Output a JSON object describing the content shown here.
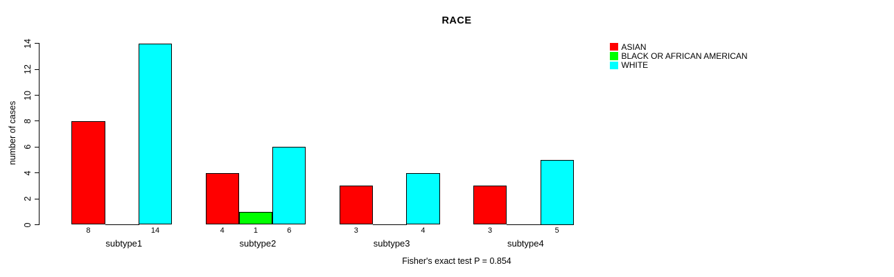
{
  "title": "RACE",
  "y_axis": {
    "label": "number of cases",
    "ticks": [
      0,
      2,
      4,
      6,
      8,
      10,
      12,
      14
    ]
  },
  "footer": "Fisher's exact test P = 0.854",
  "legend": {
    "items": [
      {
        "label": "ASIAN",
        "color": "#FF0000"
      },
      {
        "label": "BLACK OR AFRICAN AMERICAN",
        "color": "#00FF00"
      },
      {
        "label": "WHITE",
        "color": "#00FFFF"
      }
    ]
  },
  "chart_data": {
    "type": "bar",
    "title": "RACE",
    "categories": [
      "subtype1",
      "subtype2",
      "subtype3",
      "subtype4"
    ],
    "series": [
      {
        "name": "ASIAN",
        "color": "#FF0000",
        "values": [
          8,
          4,
          3,
          3
        ]
      },
      {
        "name": "BLACK OR AFRICAN AMERICAN",
        "color": "#00FF00",
        "values": [
          0,
          1,
          0,
          0
        ]
      },
      {
        "name": "WHITE",
        "color": "#00FFFF",
        "values": [
          14,
          6,
          4,
          5
        ]
      }
    ],
    "xlabel": "",
    "ylabel": "number of cases",
    "ylim": [
      0,
      14
    ],
    "yticks": [
      0,
      2,
      4,
      6,
      8,
      10,
      12,
      14
    ],
    "grid": false,
    "legend_position": "top-right",
    "bar_value_labels_shown": true,
    "zero_bars_drawn_as_baseline_segment": true,
    "annotation": "Fisher's exact test P = 0.854"
  }
}
